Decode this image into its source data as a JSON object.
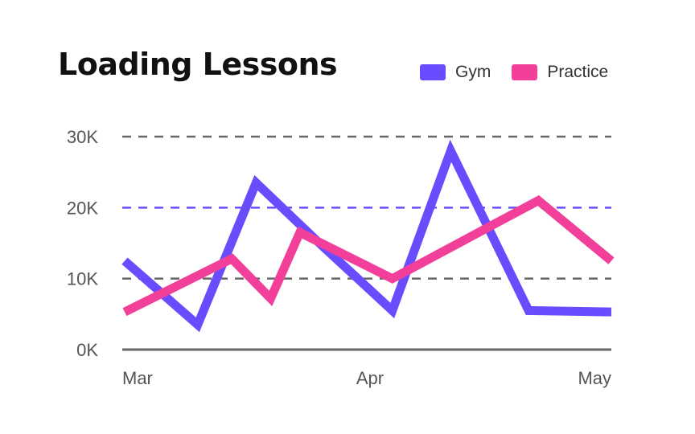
{
  "chart_data": {
    "type": "line",
    "title": "Loading Lessons",
    "x_tick_labels": [
      "Mar",
      "Apr",
      "May"
    ],
    "y_tick_labels": [
      "0K",
      "10K",
      "20K",
      "30K"
    ],
    "ylim": [
      0,
      30000
    ],
    "y_ticks": [
      0,
      10000,
      20000,
      30000
    ],
    "x": [
      0,
      1,
      2,
      3,
      4,
      5,
      6,
      7,
      8,
      9,
      10
    ],
    "xlim": [
      0,
      10
    ],
    "grid": true,
    "legend_position": "top-right",
    "series": [
      {
        "name": "Gym",
        "color": "#6a4cff",
        "x": [
          0,
          1.5,
          2.7,
          4,
          5.5,
          6.7,
          8.3,
          10
        ],
        "values": [
          12500,
          3500,
          23500,
          15000,
          5500,
          28000,
          5500,
          5300
        ]
      },
      {
        "name": "Practice",
        "color": "#f2409a",
        "x": [
          0,
          2.2,
          3,
          3.6,
          5.5,
          8.5,
          10
        ],
        "values": [
          5300,
          12800,
          7200,
          16500,
          10000,
          21000,
          12500
        ]
      }
    ]
  },
  "colors": {
    "grid_default": "#666666",
    "grid_highlight": "#6a4cff",
    "axis": "#666666"
  }
}
